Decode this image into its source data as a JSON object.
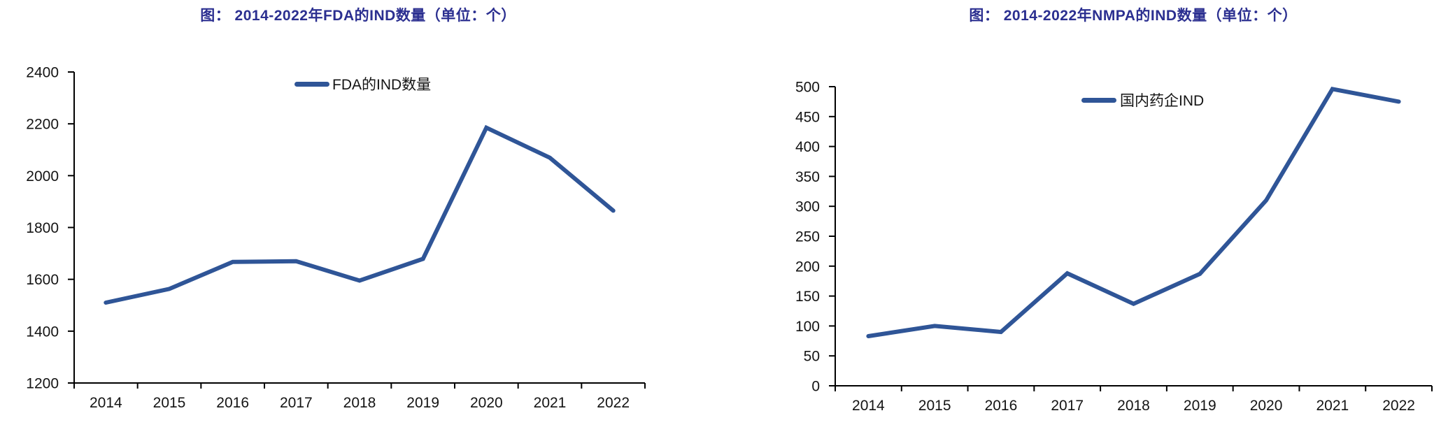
{
  "page": {
    "background": "#ffffff"
  },
  "colors": {
    "line": "#2F5597",
    "title": "#2B2F90",
    "axis": "#000000",
    "tick_label": "#141414"
  },
  "chart_data": [
    {
      "type": "line",
      "title": "图： 2014-2022年FDA的IND数量（单位：个）",
      "categories": [
        "2014",
        "2015",
        "2016",
        "2017",
        "2018",
        "2019",
        "2020",
        "2021",
        "2022"
      ],
      "series": [
        {
          "name": "FDA的IND数量",
          "values": [
            1510,
            1563,
            1667,
            1670,
            1595,
            1679,
            2185,
            2069,
            1865
          ]
        }
      ],
      "xlabel": "",
      "ylabel": "",
      "ylim": [
        1200,
        2400
      ],
      "ytick_step": 200,
      "yticks": [
        1200,
        1400,
        1600,
        1800,
        2000,
        2200,
        2400
      ],
      "legend": [
        "FDA的IND数量"
      ],
      "legend_position": "top-center",
      "grid": false
    },
    {
      "type": "line",
      "title": "图： 2014-2022年NMPA的IND数量（单位：个）",
      "categories": [
        "2014",
        "2015",
        "2016",
        "2017",
        "2018",
        "2019",
        "2020",
        "2021",
        "2022"
      ],
      "series": [
        {
          "name": "国内药企IND",
          "values": [
            83,
            100,
            90,
            188,
            137,
            187,
            310,
            496,
            475
          ]
        }
      ],
      "xlabel": "",
      "ylabel": "",
      "ylim": [
        0,
        500
      ],
      "ytick_step": 50,
      "yticks": [
        0,
        50,
        100,
        150,
        200,
        250,
        300,
        350,
        400,
        450,
        500
      ],
      "legend": [
        "国内药企IND"
      ],
      "legend_position": "top-center",
      "grid": false
    }
  ]
}
